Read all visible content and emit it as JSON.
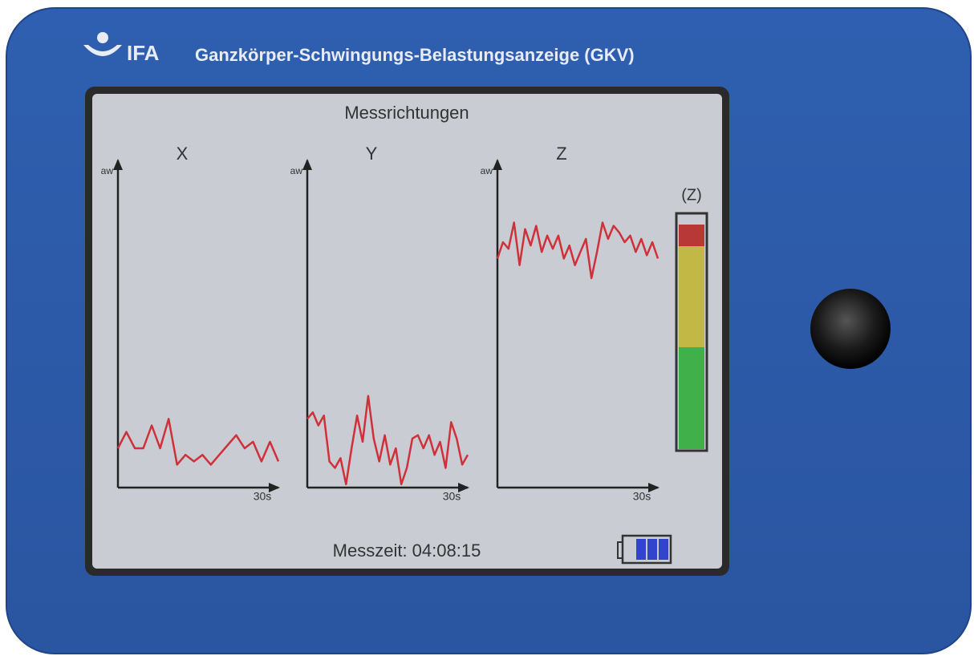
{
  "header": {
    "logo": "IFA",
    "title": "Ganzkörper-Schwingungs-Belastungsanzeige (GKV)"
  },
  "screen": {
    "title": "Messrichtungen",
    "charts": [
      {
        "type": "line",
        "title": "X",
        "y_label": "aw",
        "x_label": "30s",
        "color": "#d0303a",
        "ylim": [
          0,
          100
        ],
        "values": [
          12,
          17,
          12,
          12,
          19,
          12,
          21,
          7,
          10,
          8,
          10,
          7,
          10,
          13,
          16,
          12,
          14,
          8,
          14,
          8
        ]
      },
      {
        "type": "line",
        "title": "Y",
        "y_label": "aw",
        "x_label": "30s",
        "color": "#d0303a",
        "ylim": [
          0,
          100
        ],
        "values": [
          21,
          23,
          19,
          22,
          8,
          6,
          9,
          1,
          12,
          22,
          14,
          28,
          15,
          8,
          16,
          7,
          12,
          1,
          6,
          15,
          16,
          12,
          16,
          10,
          14,
          6,
          20,
          15,
          7,
          10
        ]
      },
      {
        "type": "line",
        "title": "Z",
        "y_label": "aw",
        "x_label": "30s",
        "color": "#d0303a",
        "ylim": [
          0,
          100
        ],
        "values": [
          70,
          75,
          73,
          81,
          68,
          79,
          74,
          80,
          72,
          77,
          73,
          77,
          70,
          74,
          68,
          72,
          76,
          64,
          72,
          81,
          76,
          80,
          78,
          75,
          77,
          72,
          76,
          71,
          75,
          70
        ]
      }
    ],
    "gauge_label": "(Z)",
    "status": "Messzeit: 04:08:15"
  }
}
